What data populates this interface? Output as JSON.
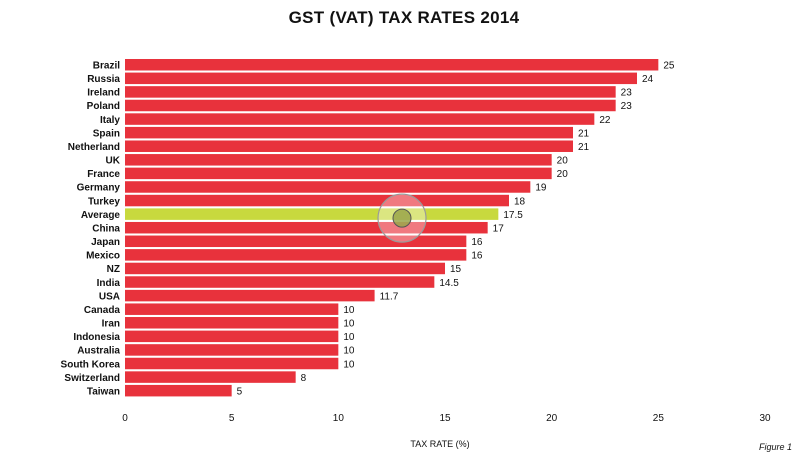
{
  "figure_label": "Figure 1",
  "colors": {
    "bar": "#e8323c",
    "highlight": "#c8d93e",
    "cursor_ring": "#ffffff",
    "cursor_dot": "#9aa44a"
  },
  "chart_data": {
    "type": "bar",
    "orientation": "horizontal",
    "title": "GST (VAT) TAX RATES 2014",
    "xlabel": "TAX RATE (%)",
    "ylabel": "",
    "xlim": [
      0,
      30
    ],
    "xticks": [
      0,
      5,
      10,
      15,
      20,
      25,
      30
    ],
    "grid": false,
    "highlight_category": "Average",
    "categories": [
      "Brazil",
      "Russia",
      "Ireland",
      "Poland",
      "Italy",
      "Spain",
      "Netherland",
      "UK",
      "France",
      "Germany",
      "Turkey",
      "Average",
      "China",
      "Japan",
      "Mexico",
      "NZ",
      "India",
      "USA",
      "Canada",
      "Iran",
      "Indonesia",
      "Australia",
      "South Korea",
      "Switzerland",
      "Taiwan"
    ],
    "values": [
      25,
      24,
      23,
      23,
      22,
      21,
      21,
      20,
      20,
      19,
      18,
      17.5,
      17,
      16,
      16,
      15,
      14.5,
      11.7,
      10,
      10,
      10,
      10,
      10,
      8,
      5
    ]
  }
}
